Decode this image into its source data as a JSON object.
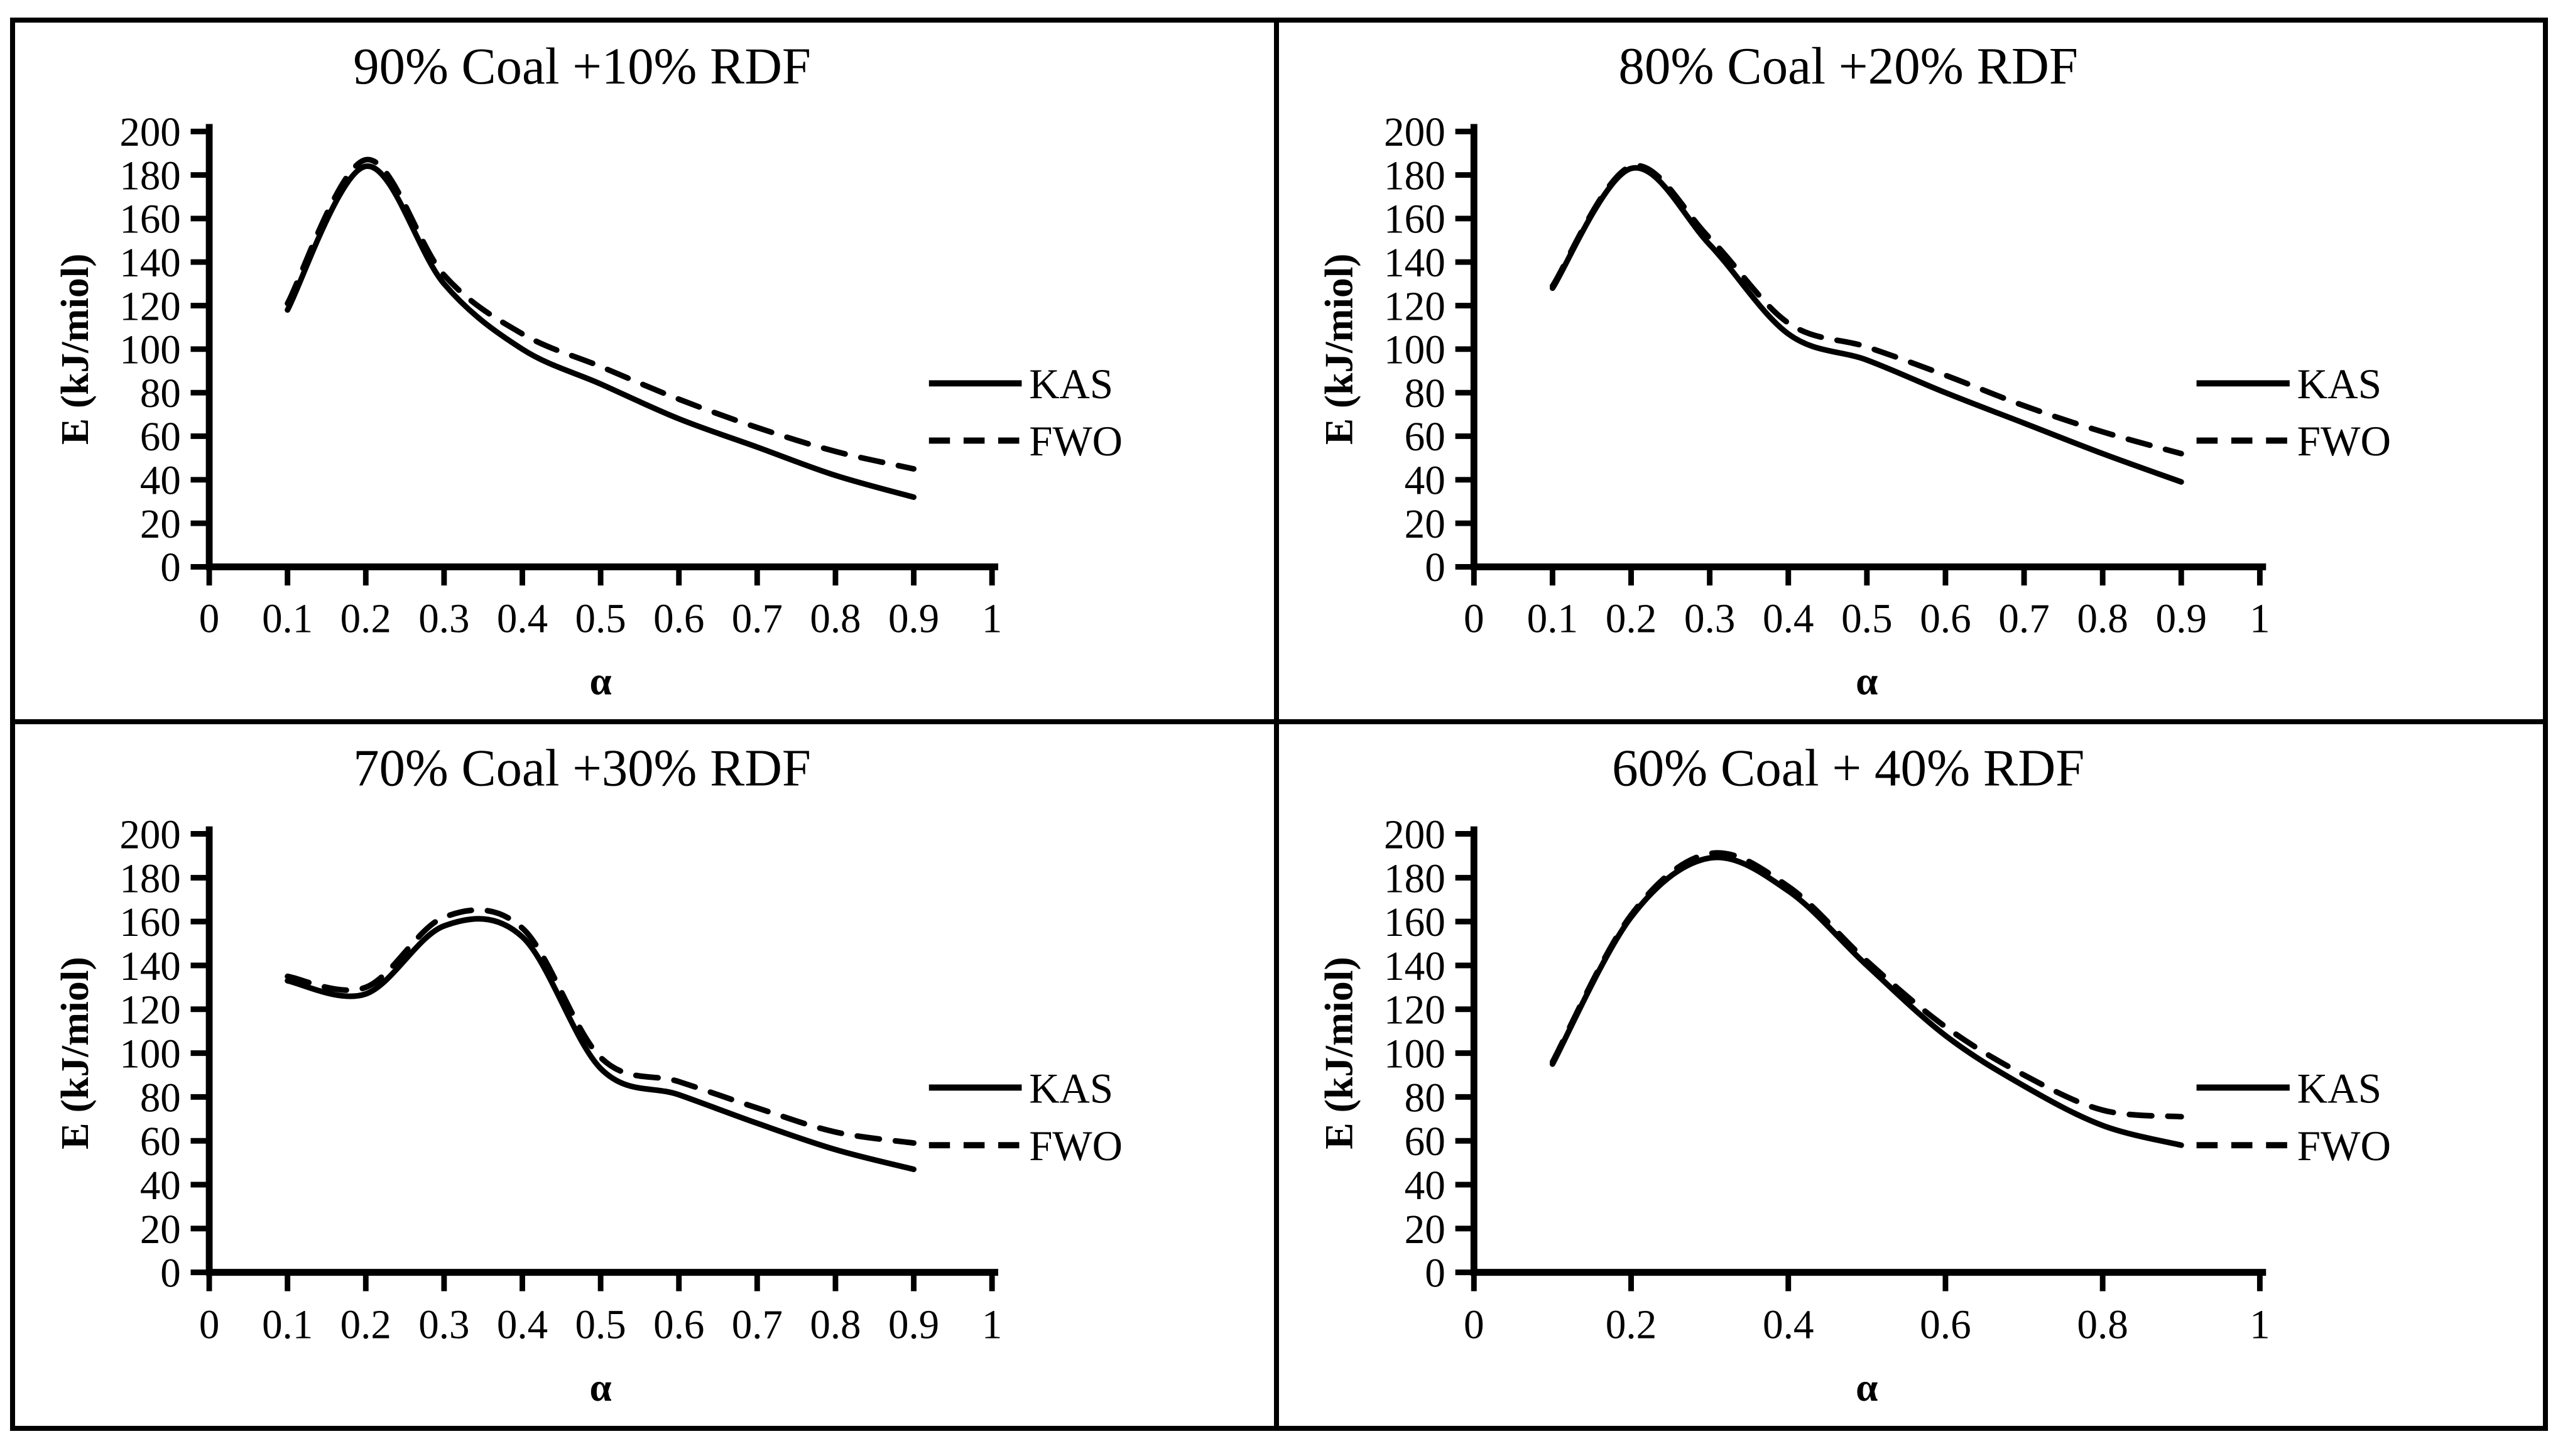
{
  "figure": {
    "background": "#ffffff",
    "border_color": "#000000",
    "line_color": "#000000",
    "y_axis_label": "E (kJ/miol)",
    "x_axis_label": "α",
    "legend_labels": [
      "KAS",
      "FWO"
    ]
  },
  "chart_data": [
    {
      "type": "line",
      "title": "90% Coal +10% RDF",
      "xlabel": "α",
      "ylabel": "E (kJ/miol)",
      "x": [
        0.1,
        0.2,
        0.3,
        0.4,
        0.5,
        0.6,
        0.7,
        0.8,
        0.9
      ],
      "series": [
        {
          "name": "KAS",
          "line_style": "solid",
          "values": [
            118,
            184,
            130,
            100,
            84,
            68,
            55,
            42,
            32
          ]
        },
        {
          "name": "FWO",
          "line_style": "dashed",
          "values": [
            121,
            187,
            134,
            107,
            92,
            77,
            64,
            53,
            45
          ]
        }
      ],
      "xlim": [
        0,
        1
      ],
      "ylim": [
        0,
        200
      ],
      "x_ticks": [
        0,
        0.1,
        0.2,
        0.3,
        0.4,
        0.5,
        0.6,
        0.7,
        0.8,
        0.9,
        1
      ],
      "y_ticks": [
        0,
        20,
        40,
        60,
        80,
        100,
        120,
        140,
        160,
        180,
        200
      ],
      "grid": false,
      "legend_position": "right-middle"
    },
    {
      "type": "line",
      "title": "80% Coal +20% RDF",
      "xlabel": "α",
      "ylabel": "E (kJ/miol)",
      "x": [
        0.1,
        0.2,
        0.3,
        0.4,
        0.5,
        0.6,
        0.7,
        0.8,
        0.9
      ],
      "series": [
        {
          "name": "KAS",
          "line_style": "solid",
          "values": [
            128,
            183,
            148,
            107,
            95,
            80,
            66,
            52,
            39
          ]
        },
        {
          "name": "FWO",
          "line_style": "dashed",
          "values": [
            129,
            184,
            151,
            112,
            101,
            88,
            74,
            62,
            52
          ]
        }
      ],
      "xlim": [
        0,
        1
      ],
      "ylim": [
        0,
        200
      ],
      "x_ticks": [
        0,
        0.1,
        0.2,
        0.3,
        0.4,
        0.5,
        0.6,
        0.7,
        0.8,
        0.9,
        1
      ],
      "y_ticks": [
        0,
        20,
        40,
        60,
        80,
        100,
        120,
        140,
        160,
        180,
        200
      ],
      "grid": false,
      "legend_position": "right-middle"
    },
    {
      "type": "line",
      "title": "70% Coal +30% RDF",
      "xlabel": "α",
      "ylabel": "E (kJ/miol)",
      "x": [
        0.1,
        0.2,
        0.3,
        0.4,
        0.5,
        0.6,
        0.7,
        0.8,
        0.9
      ],
      "series": [
        {
          "name": "KAS",
          "line_style": "solid",
          "values": [
            133,
            127,
            158,
            153,
            93,
            81,
            68,
            56,
            47
          ]
        },
        {
          "name": "FWO",
          "line_style": "dashed",
          "values": [
            135,
            130,
            162,
            157,
            98,
            87,
            75,
            64,
            59
          ]
        }
      ],
      "xlim": [
        0,
        1
      ],
      "ylim": [
        0,
        200
      ],
      "x_ticks": [
        0,
        0.1,
        0.2,
        0.3,
        0.4,
        0.5,
        0.6,
        0.7,
        0.8,
        0.9,
        1
      ],
      "y_ticks": [
        0,
        20,
        40,
        60,
        80,
        100,
        120,
        140,
        160,
        180,
        200
      ],
      "grid": false,
      "legend_position": "right-middle"
    },
    {
      "type": "line",
      "title": "60% Coal + 40% RDF",
      "xlabel": "α",
      "ylabel": "E (kJ/miol)",
      "x": [
        0.1,
        0.2,
        0.3,
        0.4,
        0.5,
        0.6,
        0.7,
        0.8,
        0.9
      ],
      "series": [
        {
          "name": "KAS",
          "line_style": "solid",
          "values": [
            95,
            162,
            189,
            174,
            140,
            108,
            85,
            67,
            58
          ]
        },
        {
          "name": "FWO",
          "line_style": "dashed",
          "values": [
            96,
            163,
            191,
            176,
            142,
            112,
            90,
            74,
            71
          ]
        }
      ],
      "xlim": [
        0,
        1
      ],
      "ylim": [
        0,
        200
      ],
      "x_ticks": [
        0,
        0.2,
        0.4,
        0.6,
        0.8,
        1
      ],
      "y_ticks": [
        0,
        20,
        40,
        60,
        80,
        100,
        120,
        140,
        160,
        180,
        200
      ],
      "grid": false,
      "legend_position": "right-middle"
    }
  ]
}
